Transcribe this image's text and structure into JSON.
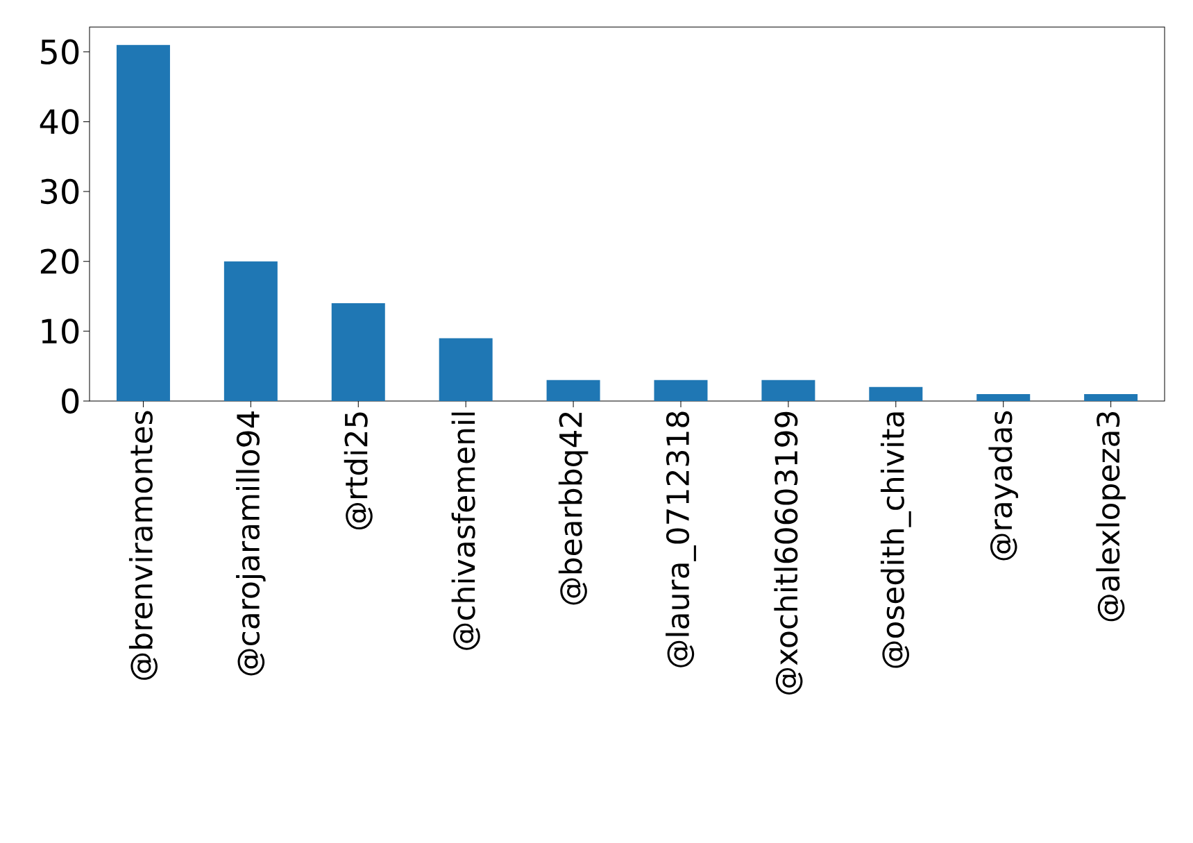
{
  "chart_data": {
    "type": "bar",
    "categories": [
      "@brenviramontes",
      "@carojaramillo94",
      "@rtdi25",
      "@chivasfemenil",
      "@bearbbq42",
      "@laura_0712318",
      "@xochitl60603199",
      "@osedith_chivita",
      "@rayadas",
      "@alexlopeza3"
    ],
    "values": [
      51,
      20,
      14,
      9,
      3,
      3,
      3,
      2,
      1,
      1
    ],
    "color": "#1f77b4",
    "ylim": [
      0,
      53.55
    ],
    "yticks": [
      0,
      10,
      20,
      30,
      40,
      50
    ]
  }
}
